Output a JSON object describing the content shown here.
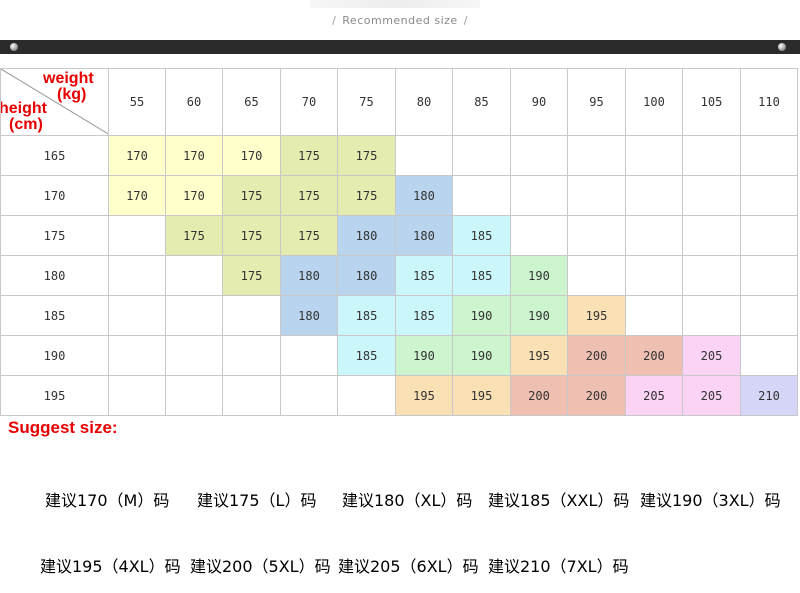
{
  "header": {
    "title": "Recommended size",
    "bar_left": "/",
    "bar_right": "/"
  },
  "corner": {
    "weight_label": "weight",
    "weight_unit": "(kg)",
    "height_label": "height",
    "height_unit": "(cm)"
  },
  "weights": [
    "55",
    "60",
    "65",
    "70",
    "75",
    "80",
    "85",
    "90",
    "95",
    "100",
    "105",
    "110"
  ],
  "rows": [
    {
      "height": "165",
      "cells": [
        "170",
        "170",
        "170",
        "175",
        "175",
        "",
        "",
        "",
        "",
        "",
        "",
        ""
      ]
    },
    {
      "height": "170",
      "cells": [
        "170",
        "170",
        "175",
        "175",
        "175",
        "180",
        "",
        "",
        "",
        "",
        "",
        ""
      ]
    },
    {
      "height": "175",
      "cells": [
        "",
        "175",
        "175",
        "175",
        "180",
        "180",
        "185",
        "",
        "",
        "",
        "",
        ""
      ]
    },
    {
      "height": "180",
      "cells": [
        "",
        "",
        "175",
        "180",
        "180",
        "185",
        "185",
        "190",
        "",
        "",
        "",
        ""
      ]
    },
    {
      "height": "185",
      "cells": [
        "",
        "",
        "",
        "180",
        "185",
        "185",
        "190",
        "190",
        "195",
        "",
        "",
        ""
      ]
    },
    {
      "height": "190",
      "cells": [
        "",
        "",
        "",
        "",
        "185",
        "190",
        "190",
        "195",
        "200",
        "200",
        "205",
        ""
      ]
    },
    {
      "height": "195",
      "cells": [
        "",
        "",
        "",
        "",
        "",
        "195",
        "195",
        "200",
        "200",
        "205",
        "205",
        "210"
      ]
    }
  ],
  "size_colors": {
    "170": "#ffffcc",
    "175": "#e5ecb0",
    "180": "#b8d4ee",
    "185": "#ccf7fa",
    "190": "#cdf5cd",
    "195": "#fae1b5",
    "200": "#efc0b2",
    "205": "#fbd3f5",
    "210": "#d6d6f8"
  },
  "suggest_label": "Suggest size:",
  "legend": [
    {
      "size": "170",
      "label": "建议170（M）码"
    },
    {
      "size": "175",
      "label": "建议175（L）码"
    },
    {
      "size": "180",
      "label": "建议180（XL）码"
    },
    {
      "size": "185",
      "label": "建议185（XXL）码"
    },
    {
      "size": "190",
      "label": "建议190（3XL）码"
    },
    {
      "size": "195",
      "label": "建议195（4XL）码"
    },
    {
      "size": "200",
      "label": "建议200（5XL）码"
    },
    {
      "size": "205",
      "label": "建议205（6XL）码"
    },
    {
      "size": "210",
      "label": "建议210（7XL）码"
    }
  ]
}
